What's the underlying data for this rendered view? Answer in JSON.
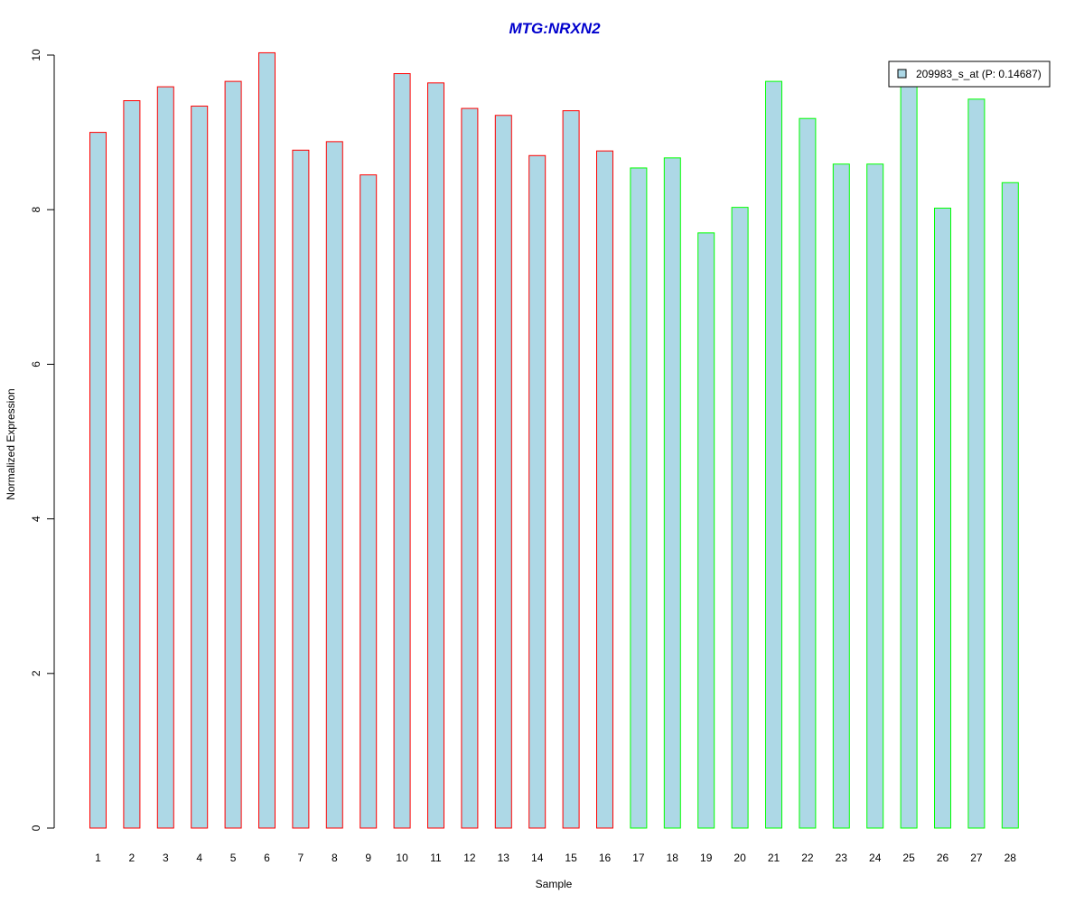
{
  "chart_data": {
    "type": "bar",
    "title": "MTG:NRXN2",
    "xlabel": "Sample",
    "ylabel": "Normalized Expression",
    "ylim": [
      0,
      10
    ],
    "yticks": [
      0,
      2,
      4,
      6,
      8,
      10
    ],
    "categories": [
      "1",
      "2",
      "3",
      "4",
      "5",
      "6",
      "7",
      "8",
      "9",
      "10",
      "11",
      "12",
      "13",
      "14",
      "15",
      "16",
      "17",
      "18",
      "19",
      "20",
      "21",
      "22",
      "23",
      "24",
      "25",
      "26",
      "27",
      "28"
    ],
    "series": [
      {
        "name": "209983_s_at (P: 0.14687)",
        "values": [
          9.0,
          9.41,
          9.59,
          9.34,
          9.66,
          10.03,
          8.77,
          8.88,
          8.45,
          9.76,
          9.64,
          9.31,
          9.22,
          8.7,
          9.28,
          8.76,
          8.54,
          8.67,
          7.7,
          8.03,
          9.66,
          9.18,
          8.59,
          8.59,
          9.7,
          8.02,
          9.43,
          8.35
        ],
        "fill": "#add8e6",
        "border_colors": [
          "#ff0000",
          "#ff0000",
          "#ff0000",
          "#ff0000",
          "#ff0000",
          "#ff0000",
          "#ff0000",
          "#ff0000",
          "#ff0000",
          "#ff0000",
          "#ff0000",
          "#ff0000",
          "#ff0000",
          "#ff0000",
          "#ff0000",
          "#ff0000",
          "#00ff00",
          "#00ff00",
          "#00ff00",
          "#00ff00",
          "#00ff00",
          "#00ff00",
          "#00ff00",
          "#00ff00",
          "#00ff00",
          "#00ff00",
          "#00ff00",
          "#00ff00"
        ]
      }
    ],
    "title_color": "#0000cd",
    "grid": false,
    "legend_position": "top-right"
  }
}
